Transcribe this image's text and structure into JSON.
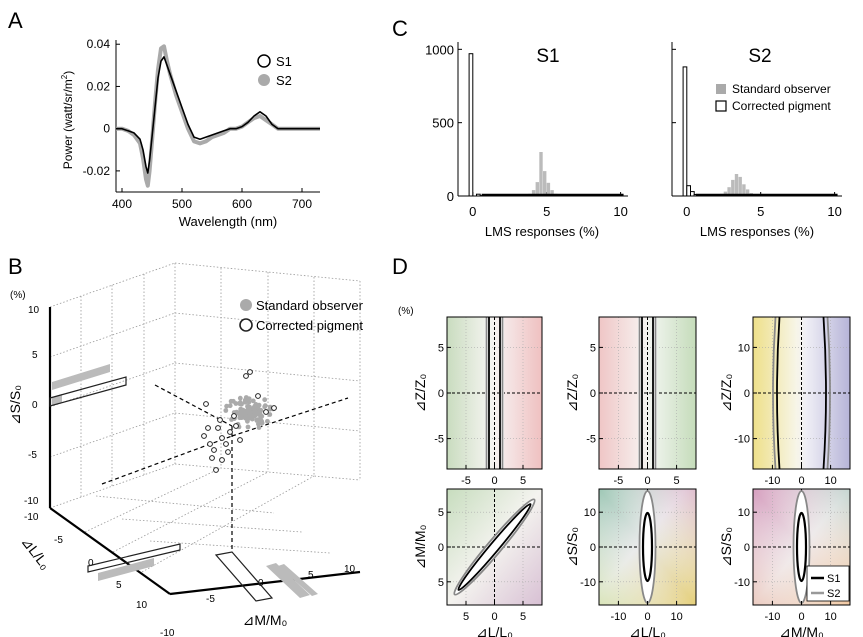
{
  "panels": {
    "A": "A",
    "B": "B",
    "C": "C",
    "D": "D"
  },
  "chart_data": [
    {
      "id": "A",
      "type": "line",
      "xlabel": "Wavelength (nm)",
      "ylabel": "Power (watt/sr/m",
      "ylabel_sup": "2",
      "ylabel_end": ")",
      "xlim": [
        390,
        730
      ],
      "ylim": [
        -0.03,
        0.042
      ],
      "xticks": [
        400,
        500,
        600,
        700
      ],
      "yticks": [
        -0.02,
        0,
        0.02,
        0.04
      ],
      "ytick_labels": [
        "-0.02",
        "0",
        "0.02",
        "0.04"
      ],
      "series": [
        {
          "name": "S1",
          "color": "#000000",
          "x": [
            390,
            400,
            410,
            420,
            430,
            435,
            440,
            443,
            446,
            450,
            455,
            460,
            465,
            470,
            475,
            480,
            490,
            500,
            510,
            520,
            530,
            540,
            550,
            560,
            570,
            580,
            590,
            600,
            610,
            620,
            630,
            640,
            650,
            660,
            670,
            680,
            700,
            730
          ],
          "y": [
            0,
            0,
            -0.001,
            -0.002,
            -0.005,
            -0.01,
            -0.018,
            -0.021,
            -0.015,
            -0.004,
            0.01,
            0.024,
            0.032,
            0.034,
            0.03,
            0.026,
            0.018,
            0.01,
            0.002,
            -0.004,
            -0.005,
            -0.004,
            -0.003,
            -0.002,
            -0.001,
            0,
            0,
            0.001,
            0.003,
            0.006,
            0.008,
            0.006,
            0.002,
            0,
            0,
            0,
            0,
            0
          ]
        },
        {
          "name": "S2",
          "color": "#aaaaaa",
          "x": [
            390,
            400,
            410,
            420,
            430,
            435,
            440,
            443,
            446,
            450,
            455,
            460,
            465,
            470,
            475,
            480,
            490,
            500,
            510,
            520,
            530,
            540,
            550,
            560,
            570,
            580,
            590,
            600,
            610,
            620,
            630,
            640,
            650,
            660,
            670,
            680,
            700,
            730
          ],
          "y": [
            0,
            0,
            -0.001,
            -0.003,
            -0.007,
            -0.014,
            -0.024,
            -0.027,
            -0.02,
            -0.006,
            0.012,
            0.028,
            0.038,
            0.039,
            0.032,
            0.026,
            0.016,
            0.008,
            0,
            -0.006,
            -0.007,
            -0.006,
            -0.004,
            -0.003,
            -0.002,
            0,
            0,
            0.001,
            0.003,
            0.005,
            0.006,
            0.004,
            0.002,
            0,
            0,
            0,
            0,
            0
          ]
        }
      ],
      "legend_position": "top-right"
    },
    {
      "id": "B",
      "type": "scatter",
      "unit_label": "(%)",
      "z_axis_label": "⊿S/S₀",
      "x_axis_label": "⊿L/L₀",
      "y_axis_label": "⊿M/M₀",
      "z_ticks": [
        "10",
        "5",
        "0",
        "-5",
        "-10"
      ],
      "l_ticks": [
        "-10",
        "-5",
        "0",
        "5",
        "10"
      ],
      "m_ticks": [
        "-10",
        "-5",
        "0",
        "5",
        "10"
      ],
      "legend": [
        "Standard observer",
        "Corrected pigment"
      ],
      "legend_position": "top-right"
    },
    {
      "id": "C",
      "type": "bar",
      "subplots": [
        {
          "title": "S1",
          "xlabel": "LMS responses (%)",
          "xticks": [
            0,
            5,
            10
          ],
          "yticks": [
            0,
            500,
            1000
          ],
          "ylim": [
            0,
            1050
          ],
          "xlim": [
            -1,
            10.5
          ],
          "bins": [
            -0.25,
            0,
            0.25,
            0.5,
            3.5,
            3.75,
            4.0,
            4.25,
            4.5,
            4.75,
            5.0,
            5.25,
            5.5,
            5.75
          ],
          "standard_observer": [
            0,
            0,
            0,
            0,
            5,
            15,
            40,
            95,
            300,
            170,
            90,
            40,
            15,
            5
          ],
          "corrected_pigment": [
            970,
            0,
            12,
            3,
            0,
            0,
            0,
            0,
            0,
            0,
            0,
            0,
            0,
            0
          ]
        },
        {
          "title": "S2",
          "xlabel": "LMS responses (%)",
          "xticks": [
            0,
            5,
            10
          ],
          "yticks": [
            0,
            500,
            1000
          ],
          "ylim": [
            0,
            1050
          ],
          "xlim": [
            -1,
            10.5
          ],
          "bins": [
            -0.25,
            0,
            0.25,
            0.5,
            2.0,
            2.25,
            2.5,
            2.75,
            3.0,
            3.25,
            3.5,
            3.75,
            4.0,
            4.25,
            4.5,
            4.75
          ],
          "standard_observer": [
            0,
            0,
            0,
            0,
            5,
            15,
            30,
            60,
            110,
            150,
            130,
            80,
            45,
            20,
            8,
            3
          ],
          "corrected_pigment": [
            880,
            70,
            30,
            10,
            0,
            0,
            0,
            0,
            0,
            0,
            0,
            0,
            0,
            0,
            0,
            0
          ]
        }
      ],
      "legend": [
        "Standard observer",
        "Corrected pigment"
      ],
      "legend_position": "top-right"
    },
    {
      "id": "D",
      "type": "heatmap",
      "unit_label": "(%)",
      "subplots": [
        {
          "xlabel": "⊿L/L₀",
          "ylabel": "⊿Z/Z₀",
          "xticks": [
            "-5",
            "0",
            "5"
          ],
          "yticks": [
            "5",
            "0",
            "-5"
          ]
        },
        {
          "xlabel": "⊿M/M₀",
          "ylabel": "⊿Z/Z₀",
          "xticks": [
            "-5",
            "0",
            "5"
          ],
          "yticks": [
            "5",
            "0",
            "-5"
          ]
        },
        {
          "xlabel": "⊿S/S₀",
          "ylabel": "⊿Z/Z₀",
          "xticks": [
            "-10",
            "0",
            "10"
          ],
          "yticks": [
            "10",
            "0",
            "-10"
          ]
        },
        {
          "xlabel": "⊿L/L₀",
          "ylabel": "⊿M/M₀",
          "xticks": [
            "5",
            "0",
            "5"
          ],
          "yticks": [
            "5",
            "0",
            "5"
          ]
        },
        {
          "xlabel": "⊿L/L₀",
          "ylabel": "⊿S/S₀",
          "xticks": [
            "-10",
            "0",
            "10"
          ],
          "yticks": [
            "10",
            "0",
            "-10"
          ]
        },
        {
          "xlabel": "⊿M/M₀",
          "ylabel": "⊿S/S₀",
          "xticks": [
            "-10",
            "0",
            "10"
          ],
          "yticks": [
            "10",
            "0",
            "-10"
          ]
        }
      ],
      "legend": [
        {
          "name": "S1",
          "color": "#000000"
        },
        {
          "name": "S2",
          "color": "#999999"
        }
      ],
      "legend_position": "bottom-right"
    }
  ]
}
